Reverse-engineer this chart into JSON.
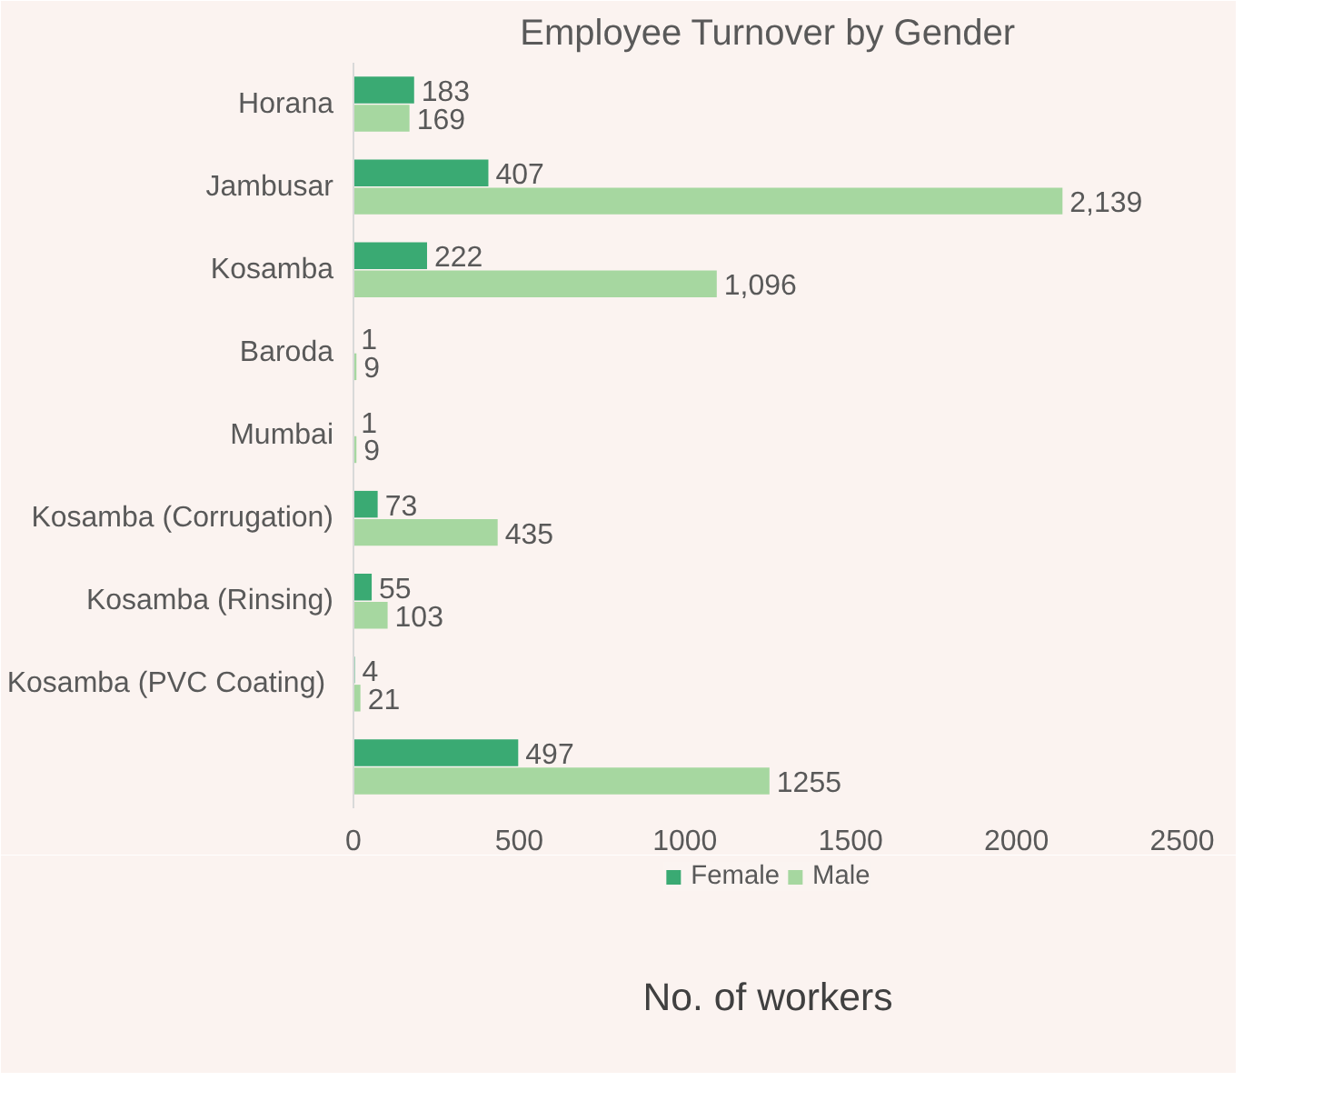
{
  "chart_data": {
    "type": "bar",
    "orientation": "horizontal",
    "title": "Employee Turnover by Gender",
    "xlabel": "No. of workers",
    "categories": [
      "Horana",
      "Jambusar",
      "Kosamba",
      "Baroda",
      "Mumbai",
      "Kosamba (Corrugation)",
      "Kosamba (Rinsing)",
      "Kosamba  (PVC Coating)",
      null
    ],
    "series": [
      {
        "name": "Female",
        "color": "#3aaa73",
        "values": [
          183,
          407,
          222,
          1,
          1,
          73,
          55,
          4,
          497
        ],
        "value_labels": [
          "183",
          "407",
          "222",
          "1",
          "1",
          "73",
          "55",
          "4",
          "497"
        ]
      },
      {
        "name": "Male",
        "color": "#a6d7a0",
        "values": [
          169,
          2139,
          1096,
          9,
          9,
          435,
          103,
          21,
          1255
        ],
        "value_labels": [
          "169",
          "2,139",
          "1,096",
          "9",
          "9",
          "435",
          "103",
          "21",
          "1255"
        ]
      }
    ],
    "xlim": [
      0,
      2500
    ],
    "xticks": [
      0,
      500,
      1000,
      1500,
      2000,
      2500
    ],
    "legend": "bottom"
  }
}
